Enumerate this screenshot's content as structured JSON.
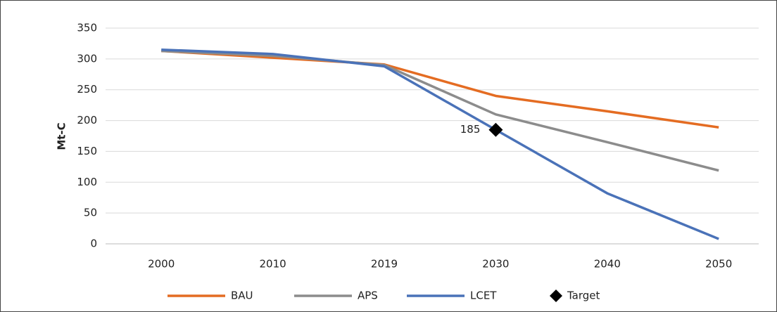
{
  "chart_data": {
    "type": "line",
    "y_label": "Mt-C",
    "categories": [
      "2000",
      "2010",
      "2019",
      "2030",
      "2040",
      "2050"
    ],
    "series": [
      {
        "name": "BAU",
        "color": "#e46c22",
        "values": [
          313,
          302,
          291,
          240,
          215,
          189
        ]
      },
      {
        "name": "APS",
        "color": "#8c8c8c",
        "values": [
          313,
          305,
          290,
          210,
          165,
          119
        ]
      },
      {
        "name": "LCET",
        "color": "#4a72b8",
        "values": [
          315,
          308,
          288,
          185,
          82,
          8
        ]
      },
      {
        "name": "Target",
        "color": "#000000",
        "marker": "diamond",
        "values": [
          null,
          null,
          null,
          185,
          null,
          null
        ],
        "data_labels": true
      }
    ],
    "ylim": [
      0,
      350
    ],
    "yticks": [
      0,
      50,
      100,
      150,
      200,
      250,
      300,
      350
    ],
    "grid": true,
    "legend": "bottom"
  }
}
